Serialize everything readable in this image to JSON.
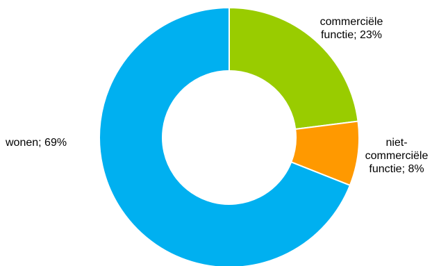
{
  "chart_data": {
    "type": "pie",
    "donut": true,
    "title": "",
    "categories": [
      "commerciële functie",
      "niet-commerciële functie",
      "wonen"
    ],
    "values": [
      23,
      8,
      69
    ],
    "unit": "%",
    "colors": [
      "#99CC00",
      "#FF9900",
      "#00B0F0"
    ],
    "labels": [
      {
        "lines": [
          "commerciële",
          "functie; 23%"
        ]
      },
      {
        "lines": [
          "niet-",
          "commerciële",
          "functie; 8%"
        ]
      },
      {
        "lines": [
          "wonen; 69%"
        ]
      }
    ],
    "legend": "none"
  }
}
